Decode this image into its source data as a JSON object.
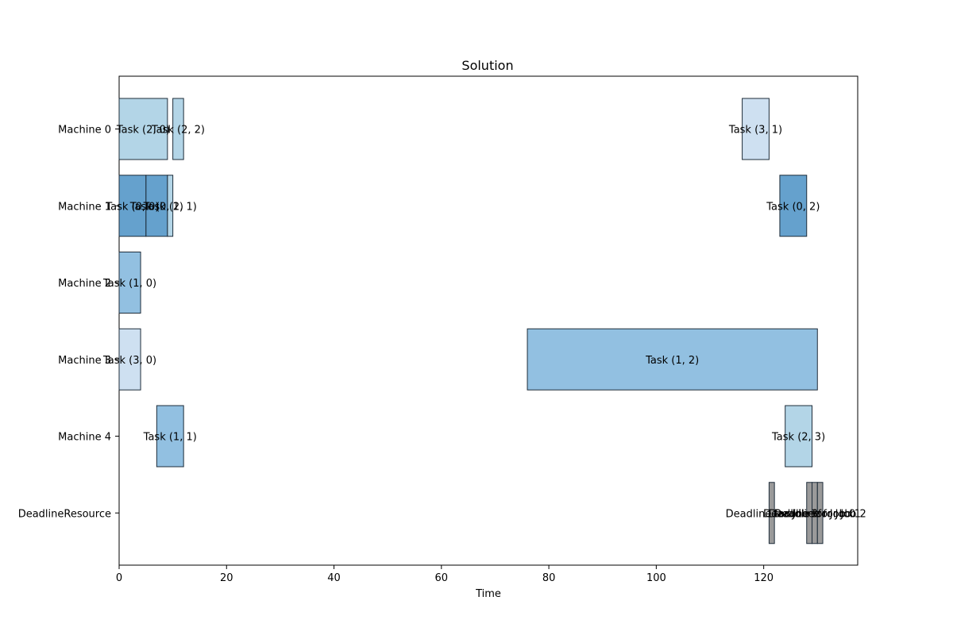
{
  "chart_data": {
    "type": "gantt",
    "title": "Solution",
    "xlabel": "Time",
    "xlim": [
      0,
      137.5
    ],
    "xticks": [
      0,
      20,
      40,
      60,
      80,
      100,
      120
    ],
    "rows": [
      "Machine 0",
      "Machine 1",
      "Machine 2",
      "Machine 3",
      "Machine 4",
      "DeadlineResource"
    ],
    "tasks": [
      {
        "row": "Machine 0",
        "label": "Task (2, 0)",
        "start": 0,
        "end": 9,
        "color": "#a6cee3"
      },
      {
        "row": "Machine 0",
        "label": "Task (2, 2)",
        "start": 10,
        "end": 12,
        "color": "#a6cee3"
      },
      {
        "row": "Machine 0",
        "label": "Task (3, 1)",
        "start": 116,
        "end": 121,
        "color": "#c6dbef"
      },
      {
        "row": "Machine 1",
        "label": "Task (0, 0)",
        "start": 0,
        "end": 5,
        "color": "#4a90c4"
      },
      {
        "row": "Machine 1",
        "label": "Task (0, 1)",
        "start": 5,
        "end": 9,
        "color": "#4a90c4"
      },
      {
        "row": "Machine 1",
        "label": "Task (2, 1)",
        "start": 9,
        "end": 10,
        "color": "#a6cee3"
      },
      {
        "row": "Machine 1",
        "label": "Task (0, 2)",
        "start": 123,
        "end": 128,
        "color": "#4a90c4"
      },
      {
        "row": "Machine 2",
        "label": "Task (1, 0)",
        "start": 0,
        "end": 4,
        "color": "#7fb5dc"
      },
      {
        "row": "Machine 3",
        "label": "Task (3, 0)",
        "start": 0,
        "end": 4,
        "color": "#c6dbef"
      },
      {
        "row": "Machine 3",
        "label": "Task (1, 2)",
        "start": 76,
        "end": 130,
        "color": "#7fb5dc"
      },
      {
        "row": "Machine 4",
        "label": "Task (1, 1)",
        "start": 7,
        "end": 12,
        "color": "#7fb5dc"
      },
      {
        "row": "Machine 4",
        "label": "Task (2, 3)",
        "start": 124,
        "end": 129,
        "color": "#a6cee3"
      },
      {
        "row": "DeadlineResource",
        "label": "Deadline for Job 3",
        "start": 121,
        "end": 122,
        "color": "#888888"
      },
      {
        "row": "DeadlineResource",
        "label": "Deadline for Job 0",
        "start": 128,
        "end": 129,
        "color": "#888888"
      },
      {
        "row": "DeadlineResource",
        "label": "Deadline for Job 1",
        "start": 129,
        "end": 130,
        "color": "#888888"
      },
      {
        "row": "DeadlineResource",
        "label": "Deadline for Job 2",
        "start": 130,
        "end": 131,
        "color": "#888888"
      }
    ]
  }
}
